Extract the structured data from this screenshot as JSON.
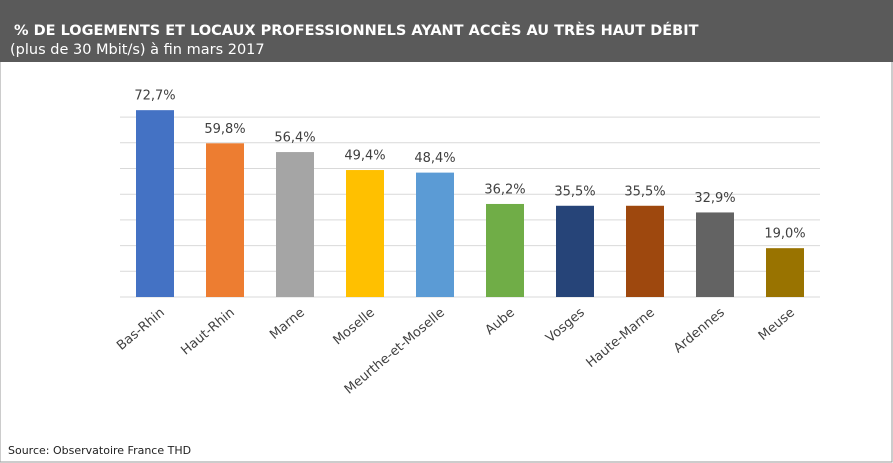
{
  "chart_data": {
    "type": "bar",
    "title": "% DE LOGEMENTS ET LOCAUX PROFESSIONNELS AYANT ACCÈS AU TRÈS HAUT DÉBIT",
    "subtitle": "(plus de 30 Mbit/s) à fin mars 2017",
    "source": "Source: Observatoire France THD",
    "categories": [
      "Bas-Rhin",
      "Haut-Rhin",
      "Marne",
      "Moselle",
      "Meurthe-et-Moselle",
      "Aube",
      "Vosges",
      "Haute-Marne",
      "Ardennes",
      "Meuse"
    ],
    "values": [
      72.7,
      59.8,
      56.4,
      49.4,
      48.4,
      36.2,
      35.5,
      35.5,
      32.9,
      19.0
    ],
    "value_labels": [
      "72,7%",
      "59,8%",
      "56,4%",
      "49,4%",
      "48,4%",
      "36,2%",
      "35,5%",
      "35,5%",
      "32,9%",
      "19,0%"
    ],
    "colors": [
      "#4472c4",
      "#ed7d31",
      "#a5a5a5",
      "#ffc000",
      "#5b9bd5",
      "#70ad47",
      "#264478",
      "#9e480e",
      "#636363",
      "#997300"
    ],
    "ylim": [
      0,
      78
    ],
    "yticks": [
      0,
      10,
      20,
      30,
      40,
      50,
      60,
      70,
      80
    ],
    "grid": true
  }
}
